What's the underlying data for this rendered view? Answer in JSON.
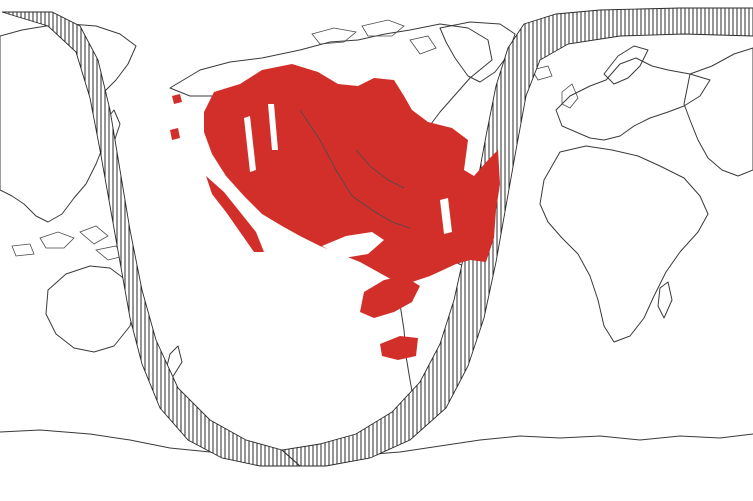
{
  "map": {
    "projection": "world-cylindrical",
    "basemap": "coastline-outline",
    "overlays": [
      {
        "kind": "coverage-region",
        "icon": "coverage-region",
        "color": "#d32f2a"
      },
      {
        "kind": "day-night-terminator",
        "icon": "terminator-band",
        "pattern": "vertical-hatch",
        "color": "#2b2b2b"
      }
    ],
    "colors": {
      "background": "#ffffff",
      "coastline": "#3a3a3a",
      "coverage": "#d32f2a"
    }
  }
}
